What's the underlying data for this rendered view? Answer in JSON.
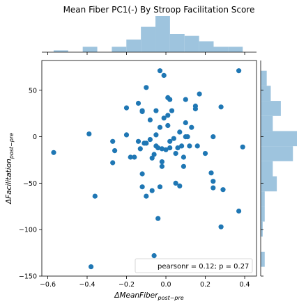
{
  "chart_data": {
    "type": "scatter",
    "title": "Mean Fiber PC1(-) By Stroop Facilitation Score",
    "xlabel_main": "ΔMeanFiber",
    "xlabel_sub": "post−pre",
    "ylabel_main": "ΔFacilitation",
    "ylabel_sub": "post−pre",
    "xlim": [
      -0.63,
      0.46
    ],
    "ylim": [
      -150,
      82
    ],
    "xticks": [
      -0.6,
      -0.4,
      -0.2,
      0.0,
      0.2,
      0.4
    ],
    "xtick_labels": [
      "−0.6",
      "−0.4",
      "−0.2",
      "0.0",
      "0.2",
      "0.4"
    ],
    "yticks": [
      -150,
      -100,
      -50,
      0,
      50
    ],
    "ytick_labels": [
      "−150",
      "−100",
      "−50",
      "0",
      "50"
    ],
    "grid": false,
    "legend_text": "pearsonr = 0.12; p = 0.27",
    "legend_position": "lower-right",
    "point_color": "#1f77b4",
    "hist_color": "#9ec4de",
    "points": [
      [
        -0.57,
        -17
      ],
      [
        -0.39,
        3
      ],
      [
        -0.38,
        -140
      ],
      [
        -0.36,
        -64
      ],
      [
        -0.27,
        -5
      ],
      [
        -0.27,
        -28
      ],
      [
        -0.26,
        -15
      ],
      [
        -0.2,
        31
      ],
      [
        -0.2,
        2
      ],
      [
        -0.18,
        -22
      ],
      [
        -0.16,
        -22
      ],
      [
        -0.14,
        36
      ],
      [
        -0.14,
        -5
      ],
      [
        -0.13,
        -13
      ],
      [
        -0.12,
        28
      ],
      [
        -0.12,
        27
      ],
      [
        -0.12,
        -40
      ],
      [
        -0.12,
        -54
      ],
      [
        -0.11,
        -7
      ],
      [
        -0.1,
        53
      ],
      [
        -0.1,
        -7
      ],
      [
        -0.1,
        -64
      ],
      [
        -0.08,
        18
      ],
      [
        -0.08,
        -3
      ],
      [
        -0.07,
        -23
      ],
      [
        -0.07,
        -58
      ],
      [
        -0.06,
        -19
      ],
      [
        -0.06,
        -128
      ],
      [
        -0.05,
        28
      ],
      [
        -0.05,
        2
      ],
      [
        -0.05,
        -10
      ],
      [
        -0.04,
        -12
      ],
      [
        -0.04,
        -88
      ],
      [
        -0.03,
        71
      ],
      [
        -0.03,
        10
      ],
      [
        -0.03,
        -54
      ],
      [
        -0.02,
        -27
      ],
      [
        -0.02,
        -13
      ],
      [
        -0.02,
        -32
      ],
      [
        -0.01,
        20
      ],
      [
        -0.01,
        66
      ],
      [
        0.0,
        -14
      ],
      [
        0.01,
        42
      ],
      [
        0.01,
        23
      ],
      [
        0.01,
        12
      ],
      [
        0.02,
        40
      ],
      [
        0.02,
        -5
      ],
      [
        0.02,
        -12
      ],
      [
        0.03,
        28
      ],
      [
        0.04,
        -2
      ],
      [
        0.05,
        -50
      ],
      [
        0.05,
        -18
      ],
      [
        0.06,
        -12
      ],
      [
        0.07,
        -53
      ],
      [
        0.07,
        5
      ],
      [
        0.08,
        -10
      ],
      [
        0.09,
        -22
      ],
      [
        0.09,
        -32
      ],
      [
        0.1,
        0
      ],
      [
        0.1,
        15
      ],
      [
        0.1,
        40
      ],
      [
        0.11,
        0
      ],
      [
        0.12,
        -10
      ],
      [
        0.13,
        10
      ],
      [
        0.15,
        33
      ],
      [
        0.15,
        30
      ],
      [
        0.16,
        -10
      ],
      [
        0.17,
        46
      ],
      [
        0.2,
        -18
      ],
      [
        0.23,
        -39
      ],
      [
        0.24,
        -55
      ],
      [
        0.24,
        -48
      ],
      [
        0.24,
        0
      ],
      [
        0.28,
        -97
      ],
      [
        0.28,
        32
      ],
      [
        0.29,
        -57
      ],
      [
        0.37,
        -80
      ],
      [
        0.37,
        71
      ],
      [
        0.39,
        -11
      ]
    ]
  }
}
